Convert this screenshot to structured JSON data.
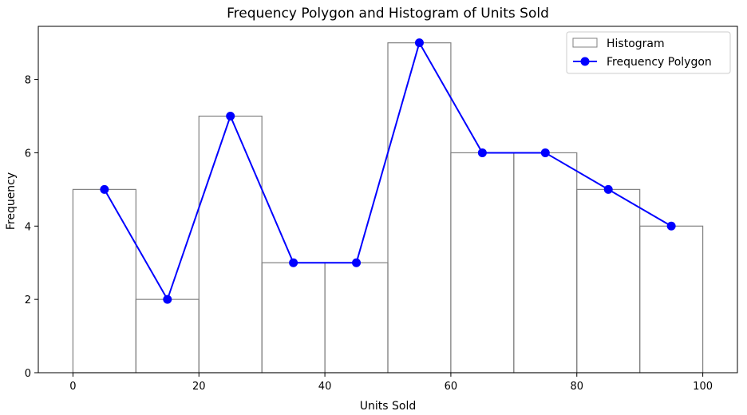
{
  "chart_data": {
    "type": "bar",
    "title": "Frequency Polygon and Histogram of Units Sold",
    "xlabel": "Units Sold",
    "ylabel": "Frequency",
    "xlim": [
      -5.5,
      105.5
    ],
    "ylim": [
      0,
      9.45
    ],
    "xticks": [
      0,
      20,
      40,
      60,
      80,
      100
    ],
    "yticks": [
      0,
      2,
      4,
      6,
      8
    ],
    "bins": [
      0,
      10,
      20,
      30,
      40,
      50,
      60,
      70,
      80,
      90,
      100
    ],
    "counts": [
      5,
      2,
      7,
      3,
      3,
      9,
      6,
      6,
      5,
      4
    ],
    "polygon": {
      "x": [
        5,
        15,
        25,
        35,
        45,
        55,
        65,
        75,
        85,
        95
      ],
      "y": [
        5,
        2,
        7,
        3,
        3,
        9,
        6,
        6,
        5,
        4
      ]
    },
    "grid": false,
    "legend_position": "top-right",
    "legend": [
      {
        "label": "Histogram",
        "kind": "histogram"
      },
      {
        "label": "Frequency Polygon",
        "kind": "line"
      }
    ],
    "colors": {
      "histogram_edge": "#808080",
      "polygon": "#0000ff",
      "axes": "#000000"
    }
  }
}
